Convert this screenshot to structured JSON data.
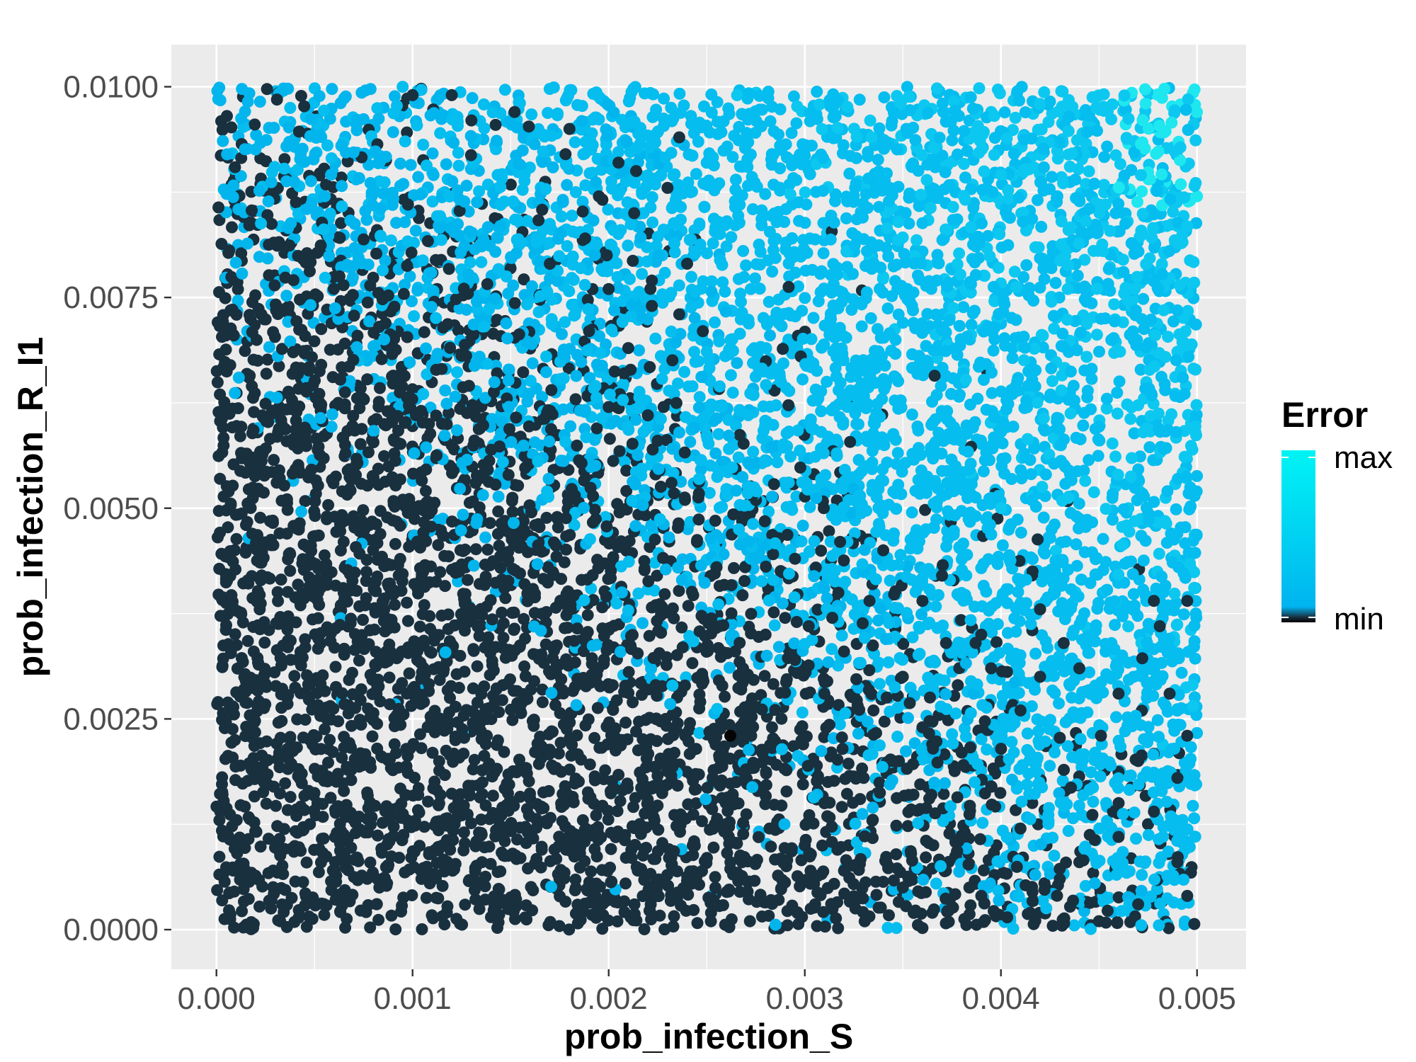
{
  "chart_data": {
    "type": "scatter",
    "xlabel": "prob_infection_S",
    "ylabel": "prob_infection_R_I1",
    "xlim": [
      -0.00023,
      0.00525
    ],
    "ylim": [
      -0.00047,
      0.0105
    ],
    "x_ticks": [
      {
        "value": 0.0,
        "label": "0.000"
      },
      {
        "value": 0.001,
        "label": "0.001"
      },
      {
        "value": 0.002,
        "label": "0.002"
      },
      {
        "value": 0.003,
        "label": "0.003"
      },
      {
        "value": 0.004,
        "label": "0.004"
      },
      {
        "value": 0.005,
        "label": "0.005"
      }
    ],
    "y_ticks": [
      {
        "value": 0.0,
        "label": "0.0000"
      },
      {
        "value": 0.0025,
        "label": "0.0025"
      },
      {
        "value": 0.005,
        "label": "0.0050"
      },
      {
        "value": 0.0075,
        "label": "0.0075"
      },
      {
        "value": 0.01,
        "label": "0.0100"
      }
    ],
    "grid": true,
    "panel_background": "#ebebeb",
    "legend": {
      "title": "Error",
      "position": "right",
      "labels": {
        "max": "max",
        "min": "min"
      },
      "gradient": [
        "#000000",
        "#1a3040",
        "#00b4f0",
        "#00f4f4"
      ]
    },
    "colors": {
      "low_error": "#19303f",
      "high_error": "#02b5ec",
      "highest_error": "#1ee7f0",
      "minimum": "#050505"
    },
    "points": [
      [
        0.00236,
        0.0094,
        1
      ],
      [
        0.00178,
        0.0092,
        1
      ],
      [
        0.00195,
        0.0087,
        1
      ],
      [
        0.00214,
        0.009,
        1
      ],
      [
        0.0023,
        0.0088,
        1
      ],
      [
        0.00213,
        0.0085,
        1
      ],
      [
        0.00199,
        0.008,
        1
      ],
      [
        0.002,
        0.0076,
        1
      ],
      [
        0.00222,
        0.0074,
        1
      ],
      [
        0.00248,
        0.0071,
        1
      ],
      [
        0.00236,
        0.0073,
        1
      ],
      [
        0.0019,
        0.0071,
        1
      ],
      [
        0.00208,
        0.0066,
        1
      ],
      [
        0.002,
        0.0062,
        1
      ],
      [
        0.00225,
        0.0058,
        1
      ],
      [
        0.00232,
        0.0053,
        1
      ],
      [
        0.00245,
        0.0046,
        1
      ],
      [
        0.00255,
        0.0043,
        1
      ],
      [
        0.00295,
        0.0044,
        1
      ],
      [
        0.00318,
        0.0046,
        1
      ],
      [
        0.0034,
        0.0045,
        1
      ],
      [
        0.0037,
        0.0042,
        1
      ],
      [
        0.00333,
        0.0039,
        1
      ],
      [
        0.0036,
        0.0039,
        1
      ],
      [
        0.00314,
        0.0037,
        1
      ],
      [
        0.00302,
        0.0036,
        1
      ],
      [
        0.0039,
        0.0035,
        1
      ],
      [
        0.0042,
        0.0038,
        1
      ],
      [
        0.00432,
        0.0034,
        1
      ],
      [
        0.00478,
        0.0039,
        1
      ],
      [
        0.00495,
        0.0039,
        1
      ],
      [
        0.00481,
        0.0036,
        1
      ],
      [
        0.0046,
        0.0028,
        1
      ],
      [
        0.00486,
        0.0028,
        1
      ],
      [
        0.0044,
        0.0031,
        1
      ],
      [
        0.0042,
        0.003,
        1
      ],
      [
        0.00378,
        0.0029,
        1
      ],
      [
        0.0041,
        0.0026,
        1
      ],
      [
        0.00451,
        0.0023,
        1
      ],
      [
        0.0047,
        0.002,
        1
      ],
      [
        0.00495,
        0.0023,
        1
      ],
      [
        0.0049,
        0.0018,
        1
      ],
      [
        0.00478,
        0.0014,
        1
      ],
      [
        0.0046,
        0.0011,
        1
      ],
      [
        0.0044,
        0.0008,
        1
      ],
      [
        0.0049,
        0.0008,
        1
      ],
      [
        0.00495,
        0.0004,
        1
      ],
      [
        0.0047,
        0.0003,
        1
      ],
      [
        0.0045,
        0.0001,
        1
      ],
      [
        0.0043,
        0.0006,
        1
      ],
      [
        0.0041,
        0.0012,
        1
      ],
      [
        0.00395,
        0.0017,
        1
      ],
      [
        0.0038,
        0.0021,
        1
      ],
      [
        0.0036,
        0.0024,
        1
      ],
      [
        0.00335,
        0.0026,
        1
      ],
      [
        0.0031,
        0.0028,
        1
      ],
      [
        0.00295,
        0.0032,
        1
      ],
      [
        0.0028,
        0.0035,
        1
      ],
      [
        0.0035,
        0.003,
        1
      ],
      [
        0.0032,
        0.0033,
        1
      ],
      [
        0.00372,
        0.0034,
        1
      ],
      [
        0.00395,
        0.0031,
        1
      ],
      [
        0.00345,
        0.002,
        1
      ],
      [
        0.0033,
        0.0018,
        1
      ],
      [
        0.0031,
        0.0015,
        1
      ],
      [
        0.003,
        0.001,
        1
      ],
      [
        0.0032,
        0.0007,
        1
      ],
      [
        0.0035,
        0.0005,
        1
      ],
      [
        0.00365,
        0.0002,
        1
      ],
      [
        0.0039,
        0.0004,
        1
      ],
      [
        0.00415,
        0.0002,
        1
      ],
      [
        0.00205,
        0.0091,
        1
      ],
      [
        0.00222,
        0.0077,
        1
      ],
      [
        0.0024,
        0.0079,
        1
      ],
      [
        0.0021,
        0.0069,
        1
      ],
      [
        0.00228,
        0.0062,
        1
      ],
      [
        0.00262,
        0.0023,
        2
      ],
      [
        0.0027,
        0.0019,
        1
      ],
      [
        0.00268,
        0.0008,
        1
      ],
      [
        0.00282,
        0.0012,
        1
      ],
      [
        0.00272,
        0.0001,
        1
      ],
      [
        0.0018,
        0.0095,
        1
      ],
      [
        0.00152,
        0.0097,
        1
      ],
      [
        0.0013,
        0.0096,
        1
      ],
      [
        0.00188,
        0.0082,
        1
      ],
      [
        0.0017,
        0.0079,
        1
      ],
      [
        0.0012,
        0.0099,
        1
      ],
      [
        0.001,
        0.0099,
        1
      ]
    ]
  }
}
